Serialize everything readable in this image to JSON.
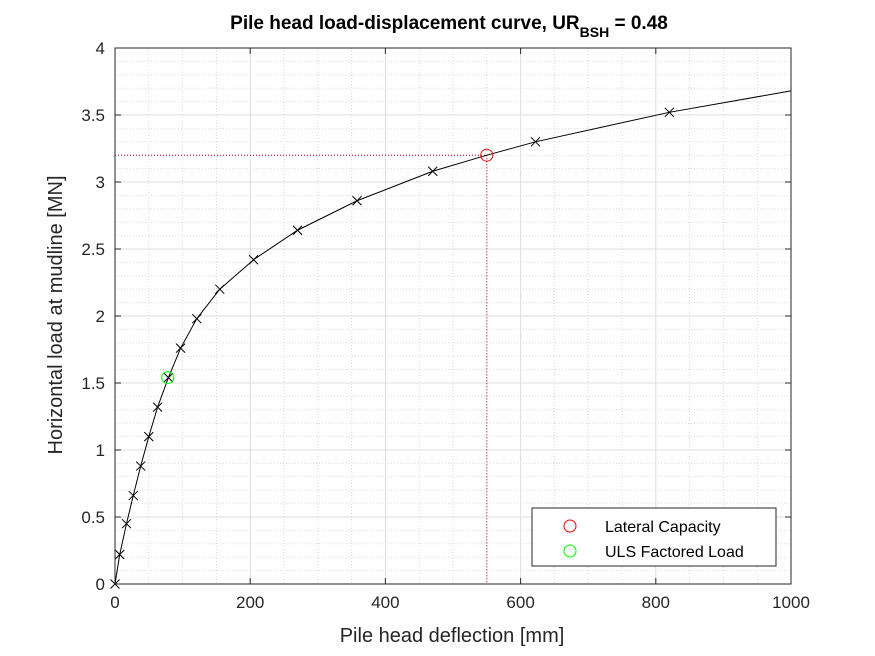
{
  "chart_data": {
    "type": "line",
    "title_main": "Pile head load-displacement curve, UR",
    "title_sub": "BSH",
    "title_tail": " = 0.48",
    "xlabel": "Pile head deflection [mm]",
    "ylabel": "Horizontal load at mudline [MN]",
    "xlim": [
      0,
      1000
    ],
    "ylim": [
      0,
      4
    ],
    "xticks": [
      0,
      200,
      400,
      600,
      800,
      1000
    ],
    "xtick_labels": [
      "0",
      "200",
      "400",
      "600",
      "800",
      "1000"
    ],
    "yticks": [
      0,
      0.5,
      1,
      1.5,
      2,
      2.5,
      3,
      3.5,
      4
    ],
    "ytick_labels": [
      "0",
      "0.5",
      "1",
      "1.5",
      "2",
      "2.5",
      "3",
      "3.5",
      "4"
    ],
    "grid": "major and minor (dotted)",
    "legend_position": "bottom-right",
    "curve": {
      "x": [
        0,
        7,
        17,
        27,
        38,
        50,
        63,
        79,
        97,
        121,
        155,
        205,
        270,
        358,
        470,
        550,
        622,
        820,
        1000
      ],
      "y": [
        0,
        0.22,
        0.45,
        0.66,
        0.88,
        1.1,
        1.32,
        1.54,
        1.76,
        1.98,
        2.2,
        2.42,
        2.64,
        2.86,
        3.08,
        3.2,
        3.3,
        3.52,
        3.68
      ],
      "color": "#000000"
    },
    "markers": {
      "x": [
        0,
        7,
        17,
        27,
        38,
        50,
        63,
        79,
        97,
        121,
        155,
        205,
        270,
        358,
        470,
        622,
        820
      ],
      "y": [
        0,
        0.22,
        0.45,
        0.66,
        0.88,
        1.1,
        1.32,
        1.54,
        1.76,
        1.98,
        2.2,
        2.42,
        2.64,
        2.86,
        3.08,
        3.3,
        3.52
      ],
      "symbol": "x",
      "color": "#000000"
    },
    "series": [
      {
        "name": "Lateral Capacity",
        "x": 550,
        "y": 3.2,
        "color": "#ff0000",
        "marker": "circle"
      },
      {
        "name": "ULS Factored Load",
        "x": 78,
        "y": 1.54,
        "color": "#00ff00",
        "marker": "circle"
      }
    ],
    "reference_lines": {
      "x": 550,
      "y": 3.2,
      "color": "#c00000",
      "style": "dotted"
    }
  }
}
